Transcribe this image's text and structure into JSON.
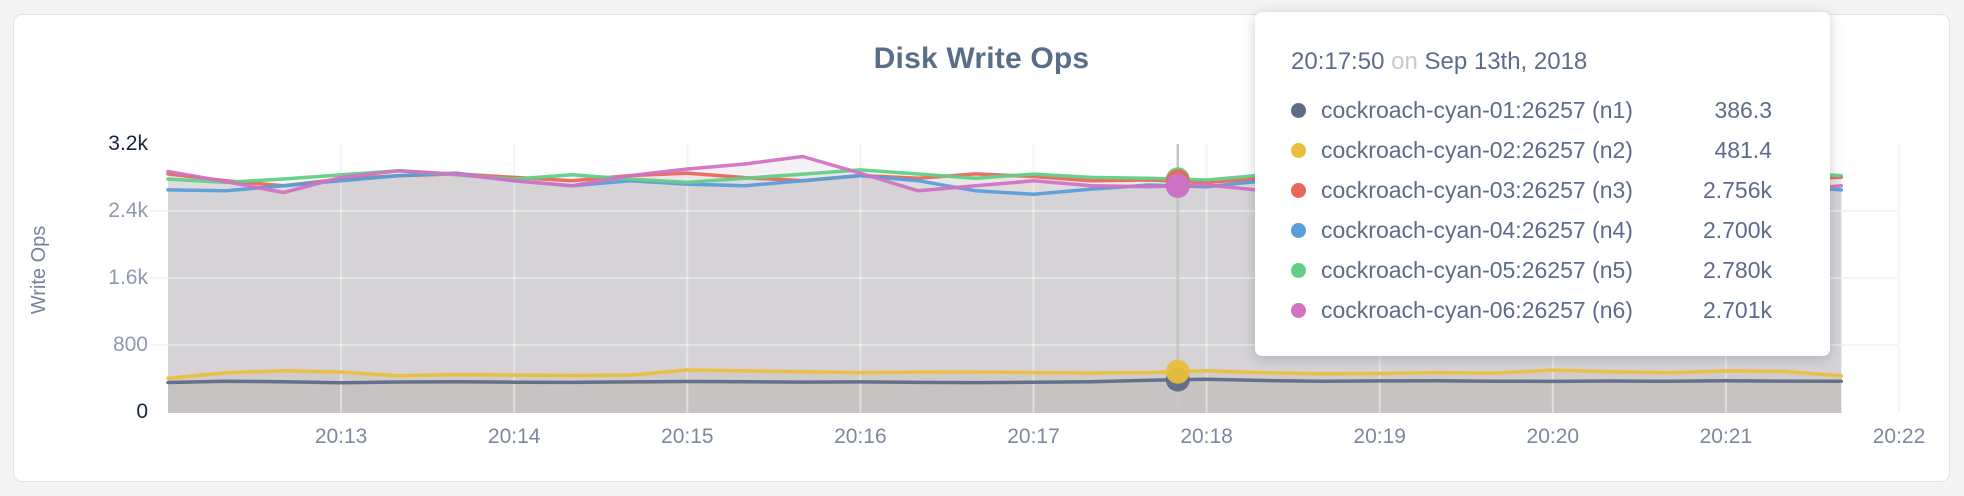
{
  "card": {
    "title": "Disk Write Ops"
  },
  "y_axis": {
    "label": "Write Ops",
    "ticks": [
      {
        "value": 0,
        "label": "0",
        "strong": true
      },
      {
        "value": 800,
        "label": "800",
        "strong": false
      },
      {
        "value": 1600,
        "label": "1.6k",
        "strong": false
      },
      {
        "value": 2400,
        "label": "2.4k",
        "strong": false
      },
      {
        "value": 3200,
        "label": "3.2k",
        "strong": true
      }
    ]
  },
  "x_axis": {
    "ticks": [
      "20:13",
      "20:14",
      "20:15",
      "20:16",
      "20:17",
      "20:18",
      "20:19",
      "20:20",
      "20:21",
      "20:22"
    ]
  },
  "tooltip": {
    "time": "20:17:50",
    "conj": "on",
    "date": "Sep 13th, 2018",
    "rows": [
      {
        "label": "cockroach-cyan-01:26257 (n1)",
        "value": "386.3",
        "color": "#5f6c87"
      },
      {
        "label": "cockroach-cyan-02:26257 (n2)",
        "value": "481.4",
        "color": "#eabe3d"
      },
      {
        "label": "cockroach-cyan-03:26257 (n3)",
        "value": "2.756k",
        "color": "#e8685b"
      },
      {
        "label": "cockroach-cyan-04:26257 (n4)",
        "value": "2.700k",
        "color": "#5b9dd8"
      },
      {
        "label": "cockroach-cyan-05:26257 (n5)",
        "value": "2.780k",
        "color": "#64ce87"
      },
      {
        "label": "cockroach-cyan-06:26257 (n6)",
        "value": "2.701k",
        "color": "#d172c4"
      }
    ]
  },
  "chart_data": {
    "type": "line",
    "title": "Disk Write Ops",
    "xlabel": "",
    "ylabel": "Write Ops",
    "ylim": [
      0,
      3200
    ],
    "y_ticks": [
      0,
      800,
      1600,
      2400,
      3200
    ],
    "x_tick_labels": [
      "20:13",
      "20:14",
      "20:15",
      "20:16",
      "20:17",
      "20:18",
      "20:19",
      "20:20",
      "20:21",
      "20:22"
    ],
    "x_start_time": "20:12:00",
    "x_step_seconds": 20,
    "grid": true,
    "legend_position": "tooltip-overlay",
    "series": [
      {
        "name": "cockroach-cyan-01:26257 (n1)",
        "color": "#5f6c87",
        "values": [
          352,
          368,
          362,
          350,
          358,
          361,
          356,
          353,
          359,
          364,
          361,
          357,
          360,
          354,
          351,
          356,
          362,
          380,
          392,
          376,
          368,
          371,
          373,
          368,
          365,
          370,
          367,
          372,
          369,
          367
        ]
      },
      {
        "name": "cockroach-cyan-02:26257 (n2)",
        "color": "#eabe3d",
        "values": [
          402,
          468,
          492,
          478,
          432,
          446,
          440,
          436,
          441,
          502,
          491,
          480,
          470,
          476,
          478,
          471,
          466,
          470,
          492,
          469,
          456,
          461,
          471,
          464,
          500,
          481,
          469,
          491,
          486,
          431
        ]
      },
      {
        "name": "cockroach-cyan-03:26257 (n3)",
        "color": "#e8685b",
        "values": [
          2843,
          2762,
          2701,
          2781,
          2822,
          2843,
          2801,
          2760,
          2823,
          2852,
          2799,
          2761,
          2824,
          2791,
          2843,
          2812,
          2762,
          2770,
          2742,
          2791,
          2822,
          2760,
          2801,
          2843,
          2790,
          2762,
          2832,
          2801,
          2771,
          2802
        ]
      },
      {
        "name": "cockroach-cyan-04:26257 (n4)",
        "color": "#5b9dd8",
        "values": [
          2652,
          2641,
          2702,
          2761,
          2823,
          2852,
          2762,
          2701,
          2762,
          2721,
          2702,
          2761,
          2823,
          2762,
          2641,
          2601,
          2662,
          2710,
          2690,
          2762,
          2812,
          2761,
          2701,
          2652,
          2702,
          2761,
          2801,
          2752,
          2701,
          2652
        ]
      },
      {
        "name": "cockroach-cyan-05:26257 (n5)",
        "color": "#64ce87",
        "values": [
          2781,
          2741,
          2782,
          2831,
          2881,
          2832,
          2781,
          2832,
          2781,
          2742,
          2791,
          2841,
          2891,
          2842,
          2791,
          2841,
          2801,
          2790,
          2770,
          2831,
          2881,
          2832,
          2781,
          2831,
          2871,
          2821,
          2781,
          2831,
          2871,
          2821
        ]
      },
      {
        "name": "cockroach-cyan-06:26257 (n6)",
        "color": "#d172c4",
        "values": [
          2872,
          2751,
          2621,
          2801,
          2881,
          2841,
          2762,
          2701,
          2821,
          2901,
          2961,
          3051,
          2851,
          2641,
          2701,
          2761,
          2701,
          2690,
          2712,
          2641,
          2701,
          2821,
          2761,
          2641,
          2701,
          2861,
          2941,
          2801,
          2641,
          2701
        ]
      }
    ],
    "hover": {
      "time": "20:17:50",
      "t_seconds": 350,
      "values": [
        386.3,
        481.4,
        2756,
        2700,
        2780,
        2701
      ]
    }
  }
}
